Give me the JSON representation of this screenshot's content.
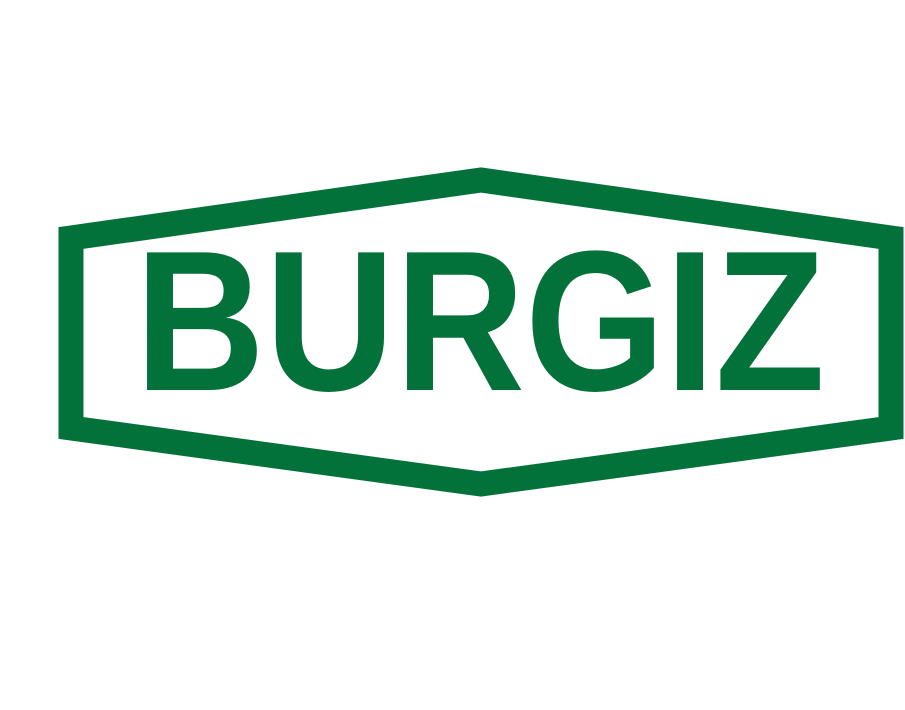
{
  "logo": {
    "text": "BURGIZ"
  }
}
